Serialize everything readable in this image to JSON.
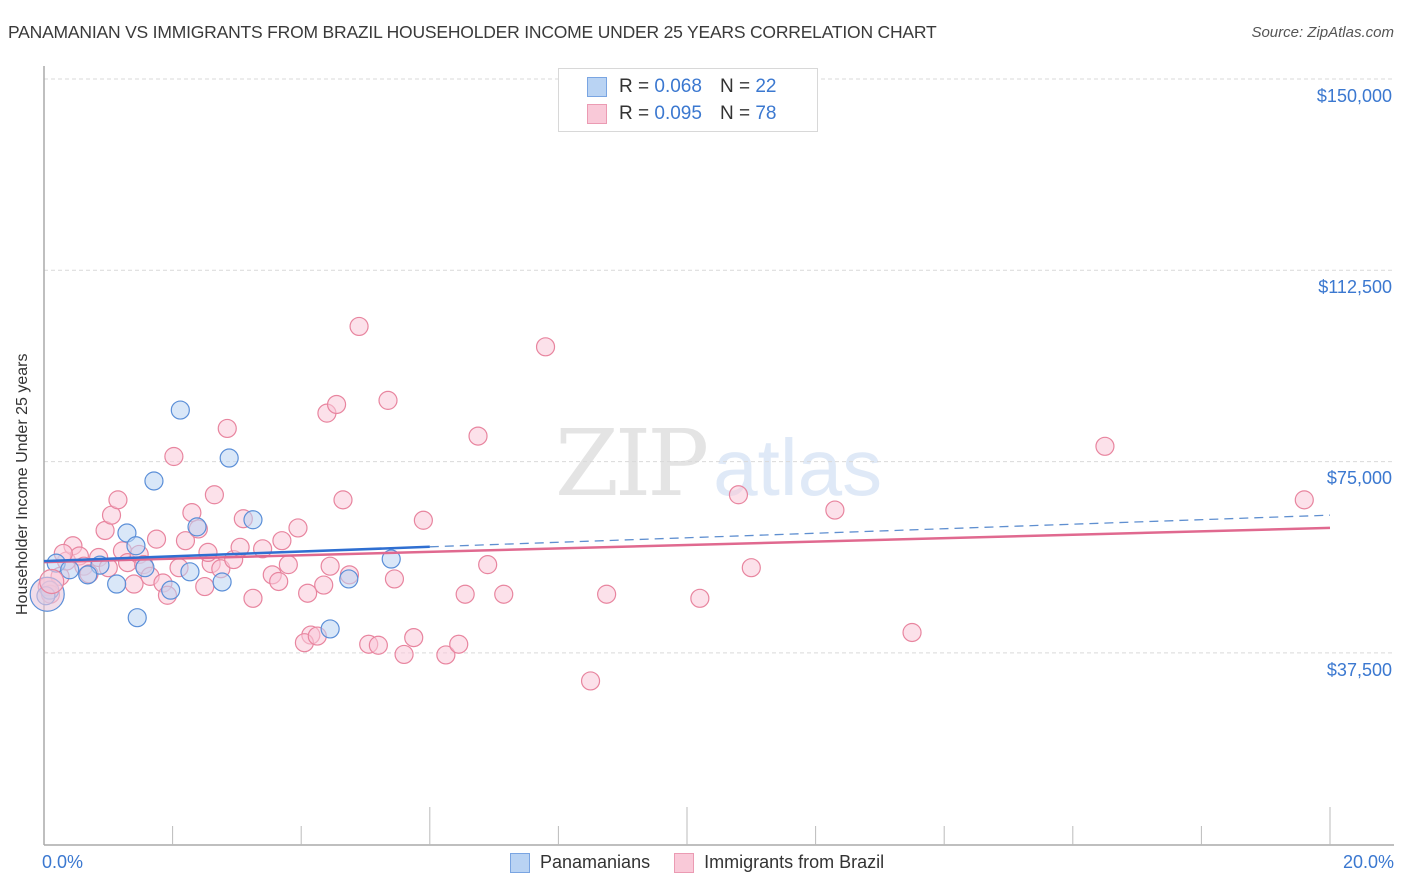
{
  "header": {
    "title": "PANAMANIAN VS IMMIGRANTS FROM BRAZIL HOUSEHOLDER INCOME UNDER 25 YEARS CORRELATION CHART",
    "source": "Source: ZipAtlas.com"
  },
  "watermark": {
    "zip": "ZIP",
    "atlas": "atlas"
  },
  "legend_top": {
    "rows": [
      {
        "series": "Panamanians",
        "r_label": "R = ",
        "r_value": "0.068",
        "n_label": "N = ",
        "n_value": "22"
      },
      {
        "series": "Immigrants from Brazil",
        "r_label": "R = ",
        "r_value": "0.095",
        "n_label": "N = ",
        "n_value": "78"
      }
    ]
  },
  "legend_bottom": {
    "items": [
      {
        "label": "Panamanians"
      },
      {
        "label": "Immigrants from Brazil"
      }
    ]
  },
  "axes": {
    "ylabel": "Householder Income Under 25 years",
    "yticks": [
      "$150,000",
      "$112,500",
      "$75,000",
      "$37,500"
    ],
    "xticks": [
      "0.0%",
      "20.0%"
    ]
  },
  "colors": {
    "blue_fill": "#b9d3f3",
    "blue_stroke": "#5b8fd8",
    "blue_line": "#2f6fd1",
    "pink_fill": "#f9c9d8",
    "pink_stroke": "#e8859f",
    "pink_line": "#e0698f",
    "tick_text": "#3b78d0"
  },
  "chart_data": {
    "type": "scatter",
    "title": "PANAMANIAN VS IMMIGRANTS FROM BRAZIL HOUSEHOLDER INCOME UNDER 25 YEARS CORRELATION CHART",
    "xlabel": "",
    "ylabel": "Householder Income Under 25 years",
    "xlim": [
      0,
      20
    ],
    "ylim": [
      0,
      153000
    ],
    "x_unit": "%",
    "grid": true,
    "legend_position": "top-center and bottom",
    "y_tick_values": [
      37500,
      75000,
      112500,
      150000
    ],
    "x_tick_labels": [
      "0.0%",
      "20.0%"
    ],
    "series": [
      {
        "name": "Panamanians",
        "R": 0.068,
        "N": 22,
        "color": "#5b8fd8",
        "trend": {
          "x0": 0,
          "y0": 55500,
          "x1": 6.0,
          "y1": 58300,
          "extended_dashed_to_x": 20,
          "extended_y": 64500
        },
        "points": [
          [
            2.12,
            85100
          ],
          [
            2.88,
            75700
          ],
          [
            1.71,
            71200
          ],
          [
            2.38,
            62200
          ],
          [
            3.25,
            63600
          ],
          [
            1.29,
            61000
          ],
          [
            1.43,
            58500
          ],
          [
            0.19,
            55100
          ],
          [
            0.87,
            54700
          ],
          [
            0.4,
            53800
          ],
          [
            0.68,
            52800
          ],
          [
            2.27,
            53400
          ],
          [
            1.57,
            54200
          ],
          [
            1.13,
            51000
          ],
          [
            2.77,
            51400
          ],
          [
            1.97,
            49800
          ],
          [
            4.74,
            52000
          ],
          [
            5.4,
            55900
          ],
          [
            1.45,
            44400
          ],
          [
            4.45,
            42200
          ],
          [
            0.09,
            49800
          ],
          [
            0.03,
            48700
          ]
        ]
      },
      {
        "name": "Immigrants from Brazil",
        "R": 0.095,
        "N": 78,
        "color": "#e8859f",
        "trend": {
          "x0": 0,
          "y0": 55300,
          "x1": 20,
          "y1": 62000
        },
        "points": [
          [
            0.05,
            50500
          ],
          [
            0.1,
            49000
          ],
          [
            0.25,
            52500
          ],
          [
            0.35,
            55500
          ],
          [
            0.45,
            58500
          ],
          [
            0.55,
            56500
          ],
          [
            0.62,
            54500
          ],
          [
            0.7,
            53000
          ],
          [
            0.85,
            56200
          ],
          [
            0.95,
            61500
          ],
          [
            1.05,
            64500
          ],
          [
            1.15,
            67500
          ],
          [
            1.22,
            57500
          ],
          [
            1.3,
            55200
          ],
          [
            1.4,
            51000
          ],
          [
            1.48,
            56800
          ],
          [
            1.55,
            54800
          ],
          [
            1.65,
            52500
          ],
          [
            1.75,
            59800
          ],
          [
            1.85,
            51200
          ],
          [
            1.92,
            48800
          ],
          [
            2.02,
            76000
          ],
          [
            2.1,
            54200
          ],
          [
            2.2,
            59500
          ],
          [
            2.3,
            65000
          ],
          [
            2.4,
            61800
          ],
          [
            2.5,
            50500
          ],
          [
            2.6,
            55000
          ],
          [
            2.65,
            68500
          ],
          [
            2.75,
            54000
          ],
          [
            2.85,
            81500
          ],
          [
            2.95,
            55800
          ],
          [
            3.05,
            58200
          ],
          [
            3.1,
            63800
          ],
          [
            3.25,
            48200
          ],
          [
            3.4,
            57900
          ],
          [
            3.55,
            52800
          ],
          [
            3.7,
            59500
          ],
          [
            3.8,
            54800
          ],
          [
            3.95,
            62000
          ],
          [
            4.1,
            49200
          ],
          [
            4.15,
            41000
          ],
          [
            4.05,
            39500
          ],
          [
            4.25,
            40800
          ],
          [
            4.4,
            84500
          ],
          [
            4.55,
            86200
          ],
          [
            4.45,
            54500
          ],
          [
            4.65,
            67500
          ],
          [
            4.75,
            52800
          ],
          [
            4.9,
            101500
          ],
          [
            5.05,
            39200
          ],
          [
            5.2,
            39000
          ],
          [
            5.35,
            87000
          ],
          [
            5.45,
            52000
          ],
          [
            5.6,
            37200
          ],
          [
            5.75,
            40500
          ],
          [
            5.9,
            63500
          ],
          [
            6.25,
            37100
          ],
          [
            6.45,
            39200
          ],
          [
            6.55,
            49000
          ],
          [
            6.75,
            80000
          ],
          [
            6.9,
            54800
          ],
          [
            7.15,
            49000
          ],
          [
            7.8,
            97500
          ],
          [
            8.5,
            32000
          ],
          [
            8.75,
            49000
          ],
          [
            10.2,
            48200
          ],
          [
            10.8,
            68500
          ],
          [
            11.0,
            54200
          ],
          [
            12.3,
            65500
          ],
          [
            13.5,
            41500
          ],
          [
            16.5,
            78000
          ],
          [
            19.6,
            67500
          ],
          [
            2.55,
            57200
          ],
          [
            1.0,
            54200
          ],
          [
            0.3,
            57000
          ],
          [
            3.65,
            51500
          ],
          [
            4.35,
            50800
          ]
        ]
      }
    ]
  }
}
